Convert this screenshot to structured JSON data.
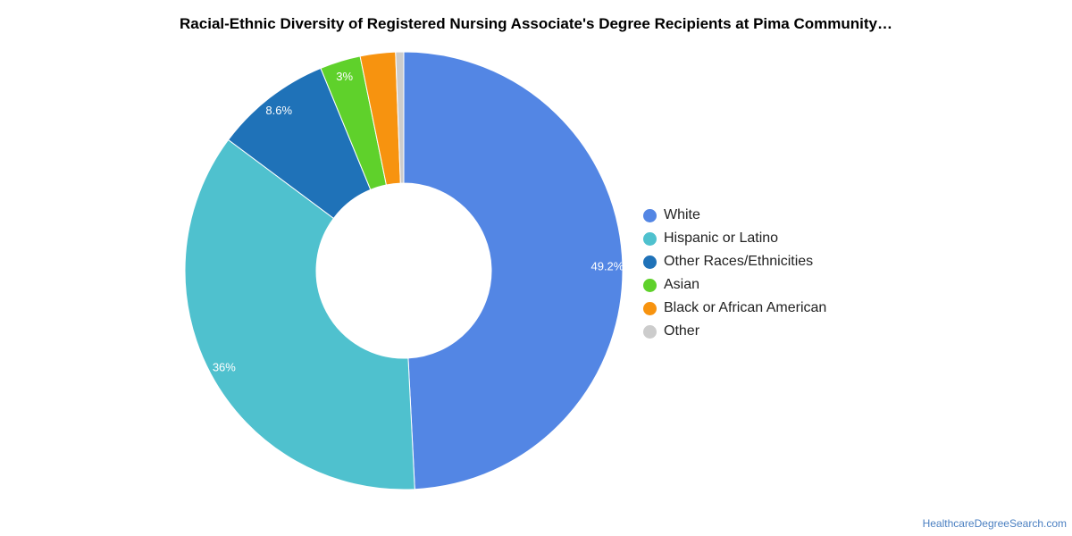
{
  "title": "Racial-Ethnic Diversity of Registered Nursing Associate's Degree Recipients at Pima Community…",
  "source_credit": "HealthcareDegreeSearch.com",
  "chart_data": {
    "type": "pie",
    "donut": true,
    "title": "Racial-Ethnic Diversity of Registered Nursing Associate's Degree Recipients at Pima Community…",
    "legend_position": "right",
    "slices": [
      {
        "name": "White",
        "value": 49.2,
        "label": "49.2%",
        "color": "#5386e4"
      },
      {
        "name": "Hispanic or Latino",
        "value": 36,
        "label": "36%",
        "color": "#4fc1ce"
      },
      {
        "name": "Other Races/Ethnicities",
        "value": 8.6,
        "label": "8.6%",
        "color": "#1f72b8"
      },
      {
        "name": "Asian",
        "value": 3,
        "label": "3%",
        "color": "#5fd12b"
      },
      {
        "name": "Black or African American",
        "value": 2.6,
        "label": "",
        "color": "#f7930f"
      },
      {
        "name": "Other",
        "value": 0.6,
        "label": "",
        "color": "#cccccc"
      }
    ]
  }
}
